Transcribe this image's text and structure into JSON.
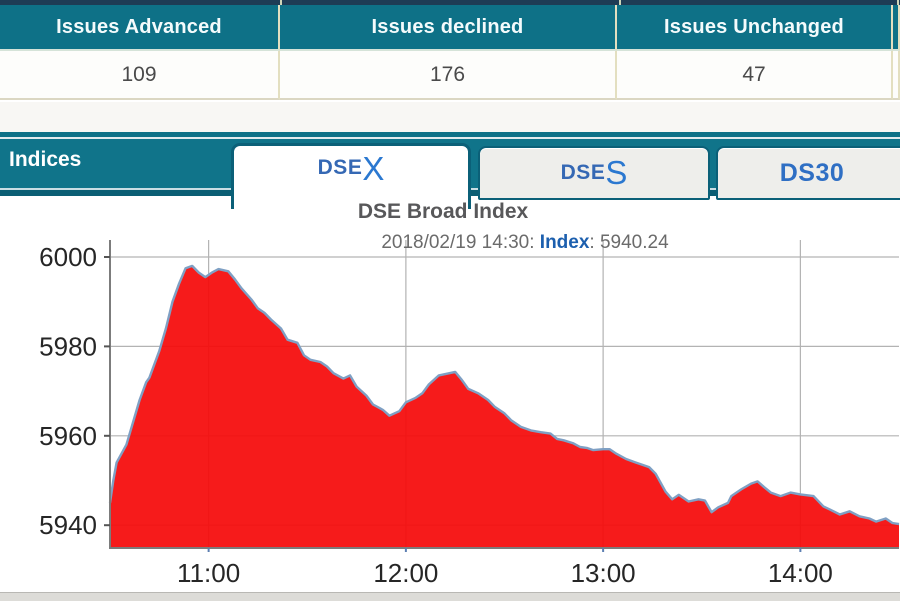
{
  "summary_table": {
    "columns": [
      {
        "header": "Issues Advanced",
        "value": "109"
      },
      {
        "header": "Issues declined",
        "value": "176"
      },
      {
        "header": "Issues Unchanged",
        "value": "47"
      }
    ]
  },
  "indices_panel": {
    "title": "Indices",
    "tabs": [
      {
        "label_prefix": "DSE",
        "label_suffix": "X",
        "active": true
      },
      {
        "label_prefix": "DSE",
        "label_suffix": "S",
        "active": false
      },
      {
        "label_prefix": "DS30",
        "label_suffix": "",
        "active": false
      }
    ]
  },
  "chart_data": {
    "type": "area",
    "title": "DSE Broad Index",
    "subtitle_prefix": "2018/02/19 14:30: ",
    "subtitle_label": "Index",
    "subtitle_value": ": 5940.24",
    "ylabel": "",
    "xlabel": "",
    "y_ticks": [
      6000,
      5980,
      5960,
      5940
    ],
    "x_ticks": [
      {
        "t": 30,
        "label": "11:00"
      },
      {
        "t": 90,
        "label": "12:00"
      },
      {
        "t": 150,
        "label": "13:00"
      },
      {
        "t": 210,
        "label": "14:00"
      }
    ],
    "x_start_time": "10:30",
    "x_end_time": "14:30",
    "x_range_minutes": [
      0,
      240
    ],
    "y_range": [
      5934.9,
      6003.8
    ],
    "grid": true,
    "grid_color": "#b3b3b3",
    "axis_color": "#7c7c7c",
    "fill_color": "#f50a0a",
    "line_color": "#7fa0c4",
    "accent_teal": "#0e7187",
    "points": [
      [
        0,
        5945
      ],
      [
        1,
        5950
      ],
      [
        2,
        5954
      ],
      [
        5,
        5958
      ],
      [
        7,
        5963
      ],
      [
        9,
        5968
      ],
      [
        11,
        5972
      ],
      [
        12,
        5973
      ],
      [
        15,
        5979
      ],
      [
        17,
        5984
      ],
      [
        19,
        5990
      ],
      [
        21,
        5994
      ],
      [
        23,
        5997.5
      ],
      [
        25,
        5998
      ],
      [
        27,
        5996.5
      ],
      [
        29,
        5995.5
      ],
      [
        31,
        5996.5
      ],
      [
        33,
        5997.3
      ],
      [
        36,
        5996.8
      ],
      [
        38,
        5995
      ],
      [
        40,
        5993
      ],
      [
        43,
        5990.5
      ],
      [
        45,
        5988.5
      ],
      [
        47,
        5987.5
      ],
      [
        49,
        5986
      ],
      [
        52,
        5984
      ],
      [
        54,
        5981.5
      ],
      [
        57,
        5980.8
      ],
      [
        59,
        5978
      ],
      [
        61,
        5977
      ],
      [
        64,
        5976.5
      ],
      [
        66,
        5975.5
      ],
      [
        68,
        5974
      ],
      [
        71,
        5972.8
      ],
      [
        73,
        5973.5
      ],
      [
        75,
        5971
      ],
      [
        78,
        5969
      ],
      [
        80,
        5967
      ],
      [
        83,
        5965.8
      ],
      [
        85,
        5964.5
      ],
      [
        88,
        5965.5
      ],
      [
        90,
        5967.5
      ],
      [
        93,
        5968.5
      ],
      [
        95,
        5969.5
      ],
      [
        97,
        5971.5
      ],
      [
        100,
        5973.5
      ],
      [
        102,
        5973.8
      ],
      [
        105,
        5974.3
      ],
      [
        107,
        5972.5
      ],
      [
        109,
        5970.5
      ],
      [
        112,
        5969.5
      ],
      [
        115,
        5968
      ],
      [
        117,
        5966.5
      ],
      [
        120,
        5965
      ],
      [
        122,
        5963.5
      ],
      [
        125,
        5962
      ],
      [
        128,
        5961.2
      ],
      [
        131,
        5960.8
      ],
      [
        134,
        5960.5
      ],
      [
        136,
        5959.3
      ],
      [
        138,
        5959
      ],
      [
        141,
        5958.3
      ],
      [
        143,
        5957.5
      ],
      [
        145,
        5957.3
      ],
      [
        147,
        5956.8
      ],
      [
        150,
        5957
      ],
      [
        152,
        5957
      ],
      [
        154,
        5956
      ],
      [
        157,
        5954.8
      ],
      [
        160,
        5954
      ],
      [
        162,
        5953.5
      ],
      [
        164,
        5953
      ],
      [
        166,
        5951.5
      ],
      [
        169,
        5947.5
      ],
      [
        171,
        5945.8
      ],
      [
        173,
        5946.8
      ],
      [
        176,
        5945.3
      ],
      [
        179,
        5945.8
      ],
      [
        181,
        5945.5
      ],
      [
        183,
        5942.9
      ],
      [
        185,
        5944
      ],
      [
        188,
        5945
      ],
      [
        189,
        5946.5
      ],
      [
        192,
        5948
      ],
      [
        195,
        5949.3
      ],
      [
        197,
        5949.8
      ],
      [
        199,
        5948.5
      ],
      [
        201,
        5947.3
      ],
      [
        204,
        5946.5
      ],
      [
        207,
        5947.3
      ],
      [
        210,
        5946.9
      ],
      [
        214,
        5946.5
      ],
      [
        217,
        5944.2
      ],
      [
        219,
        5943.5
      ],
      [
        222,
        5942.4
      ],
      [
        225,
        5943.1
      ],
      [
        228,
        5942
      ],
      [
        231,
        5941.5
      ],
      [
        233,
        5940.8
      ],
      [
        236,
        5941.5
      ],
      [
        238,
        5940.5
      ],
      [
        240,
        5940.24
      ]
    ]
  }
}
